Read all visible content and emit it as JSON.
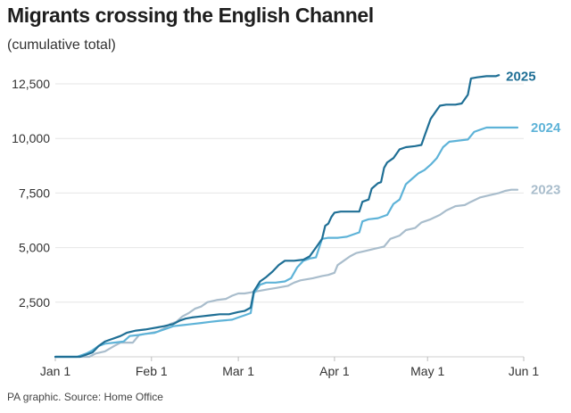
{
  "chart_data": {
    "type": "line",
    "title": "Migrants crossing the English Channel",
    "subtitle": "(cumulative total)",
    "xlabel": "",
    "ylabel": "",
    "ylim": [
      0,
      13000
    ],
    "x_range_days": [
      0,
      151
    ],
    "y_ticks": [
      2500,
      5000,
      7500,
      10000,
      12500
    ],
    "y_tick_labels": [
      "2,500",
      "5,000",
      "7,500",
      "10,000",
      "12,500"
    ],
    "x_ticks": [
      0,
      31,
      59,
      90,
      120,
      151
    ],
    "x_tick_labels": [
      "Jan 1",
      "Feb 1",
      "Mar 1",
      "Apr 1",
      "May 1",
      "Jun 1"
    ],
    "grid": true,
    "series": [
      {
        "name": "2023",
        "color": "#a9bdcc",
        "points": [
          [
            0,
            0
          ],
          [
            11,
            0
          ],
          [
            13,
            150
          ],
          [
            16,
            250
          ],
          [
            19,
            500
          ],
          [
            21,
            650
          ],
          [
            25,
            650
          ],
          [
            27,
            1000
          ],
          [
            29,
            1050
          ],
          [
            31,
            1100
          ],
          [
            33,
            1150
          ],
          [
            35,
            1300
          ],
          [
            37,
            1500
          ],
          [
            39,
            1600
          ],
          [
            41,
            1850
          ],
          [
            43,
            2000
          ],
          [
            45,
            2200
          ],
          [
            47,
            2300
          ],
          [
            49,
            2500
          ],
          [
            52,
            2600
          ],
          [
            55,
            2650
          ],
          [
            57,
            2800
          ],
          [
            59,
            2900
          ],
          [
            61,
            2900
          ],
          [
            63,
            2950
          ],
          [
            65,
            3000
          ],
          [
            67,
            3050
          ],
          [
            69,
            3100
          ],
          [
            71,
            3150
          ],
          [
            73,
            3200
          ],
          [
            75,
            3250
          ],
          [
            77,
            3400
          ],
          [
            79,
            3500
          ],
          [
            83,
            3600
          ],
          [
            86,
            3700
          ],
          [
            88,
            3750
          ],
          [
            90,
            3850
          ],
          [
            91,
            4200
          ],
          [
            93,
            4400
          ],
          [
            95,
            4600
          ],
          [
            97,
            4750
          ],
          [
            100,
            4850
          ],
          [
            103,
            4950
          ],
          [
            106,
            5050
          ],
          [
            108,
            5400
          ],
          [
            111,
            5550
          ],
          [
            113,
            5800
          ],
          [
            116,
            5900
          ],
          [
            118,
            6150
          ],
          [
            121,
            6300
          ],
          [
            124,
            6500
          ],
          [
            126,
            6700
          ],
          [
            129,
            6900
          ],
          [
            132,
            6950
          ],
          [
            134,
            7100
          ],
          [
            137,
            7300
          ],
          [
            140,
            7400
          ],
          [
            143,
            7500
          ],
          [
            145,
            7600
          ],
          [
            147,
            7650
          ],
          [
            149,
            7650
          ]
        ]
      },
      {
        "name": "2024",
        "color": "#5eb3d8",
        "points": [
          [
            0,
            0
          ],
          [
            7,
            0
          ],
          [
            10,
            150
          ],
          [
            12,
            300
          ],
          [
            14,
            500
          ],
          [
            16,
            600
          ],
          [
            19,
            650
          ],
          [
            22,
            700
          ],
          [
            24,
            950
          ],
          [
            27,
            1000
          ],
          [
            29,
            1050
          ],
          [
            32,
            1100
          ],
          [
            34,
            1200
          ],
          [
            36,
            1300
          ],
          [
            38,
            1400
          ],
          [
            41,
            1450
          ],
          [
            44,
            1500
          ],
          [
            47,
            1550
          ],
          [
            50,
            1600
          ],
          [
            53,
            1650
          ],
          [
            57,
            1700
          ],
          [
            59,
            1800
          ],
          [
            61,
            1900
          ],
          [
            63,
            2000
          ],
          [
            64,
            2900
          ],
          [
            66,
            3300
          ],
          [
            68,
            3400
          ],
          [
            71,
            3400
          ],
          [
            74,
            3450
          ],
          [
            76,
            3600
          ],
          [
            78,
            4100
          ],
          [
            80,
            4400
          ],
          [
            82,
            4500
          ],
          [
            84,
            4550
          ],
          [
            86,
            5400
          ],
          [
            88,
            5450
          ],
          [
            91,
            5450
          ],
          [
            94,
            5500
          ],
          [
            96,
            5600
          ],
          [
            98,
            5700
          ],
          [
            99,
            6200
          ],
          [
            101,
            6300
          ],
          [
            104,
            6350
          ],
          [
            107,
            6500
          ],
          [
            109,
            7000
          ],
          [
            111,
            7200
          ],
          [
            113,
            7900
          ],
          [
            115,
            8150
          ],
          [
            117,
            8400
          ],
          [
            119,
            8550
          ],
          [
            121,
            8800
          ],
          [
            123,
            9100
          ],
          [
            125,
            9600
          ],
          [
            127,
            9850
          ],
          [
            130,
            9900
          ],
          [
            133,
            9950
          ],
          [
            135,
            10300
          ],
          [
            137,
            10400
          ],
          [
            139,
            10500
          ],
          [
            143,
            10500
          ],
          [
            147,
            10500
          ],
          [
            149,
            10500
          ]
        ]
      },
      {
        "name": "2025",
        "color": "#1f6f95",
        "points": [
          [
            0,
            0
          ],
          [
            5,
            0
          ],
          [
            8,
            0
          ],
          [
            10,
            100
          ],
          [
            12,
            200
          ],
          [
            14,
            500
          ],
          [
            16,
            700
          ],
          [
            18,
            800
          ],
          [
            21,
            950
          ],
          [
            23,
            1100
          ],
          [
            26,
            1200
          ],
          [
            29,
            1250
          ],
          [
            31,
            1300
          ],
          [
            33,
            1350
          ],
          [
            35,
            1400
          ],
          [
            38,
            1500
          ],
          [
            40,
            1650
          ],
          [
            42,
            1750
          ],
          [
            44,
            1800
          ],
          [
            47,
            1850
          ],
          [
            50,
            1900
          ],
          [
            53,
            1950
          ],
          [
            56,
            1950
          ],
          [
            59,
            2050
          ],
          [
            61,
            2100
          ],
          [
            63,
            2250
          ],
          [
            64,
            3000
          ],
          [
            66,
            3450
          ],
          [
            68,
            3650
          ],
          [
            70,
            3900
          ],
          [
            72,
            4200
          ],
          [
            74,
            4400
          ],
          [
            77,
            4400
          ],
          [
            80,
            4450
          ],
          [
            82,
            4600
          ],
          [
            84,
            5000
          ],
          [
            86,
            5400
          ],
          [
            87,
            6000
          ],
          [
            88,
            6100
          ],
          [
            89,
            6400
          ],
          [
            90,
            6600
          ],
          [
            92,
            6650
          ],
          [
            95,
            6650
          ],
          [
            98,
            6650
          ],
          [
            99,
            7100
          ],
          [
            101,
            7200
          ],
          [
            102,
            7700
          ],
          [
            104,
            7950
          ],
          [
            105,
            8000
          ],
          [
            106,
            8650
          ],
          [
            107,
            8900
          ],
          [
            109,
            9100
          ],
          [
            111,
            9500
          ],
          [
            113,
            9600
          ],
          [
            116,
            9650
          ],
          [
            118,
            9700
          ],
          [
            119,
            10100
          ],
          [
            121,
            10900
          ],
          [
            123,
            11300
          ],
          [
            124,
            11500
          ],
          [
            126,
            11550
          ],
          [
            129,
            11550
          ],
          [
            131,
            11600
          ],
          [
            133,
            12000
          ],
          [
            134,
            12750
          ],
          [
            136,
            12800
          ],
          [
            139,
            12850
          ],
          [
            142,
            12850
          ],
          [
            143,
            12900
          ]
        ]
      }
    ],
    "series_labels": [
      {
        "name": "2025",
        "text": "2025",
        "anchor_day": 143,
        "anchor_value": 12850,
        "color": "#1f6f95"
      },
      {
        "name": "2024",
        "text": "2024",
        "anchor_day": 151,
        "anchor_value": 10500,
        "color": "#5eb3d8"
      },
      {
        "name": "2023",
        "text": "2023",
        "anchor_day": 151,
        "anchor_value": 7650,
        "color": "#a9bdcc"
      }
    ]
  },
  "footer": {
    "source": "PA graphic. Source: Home Office"
  }
}
